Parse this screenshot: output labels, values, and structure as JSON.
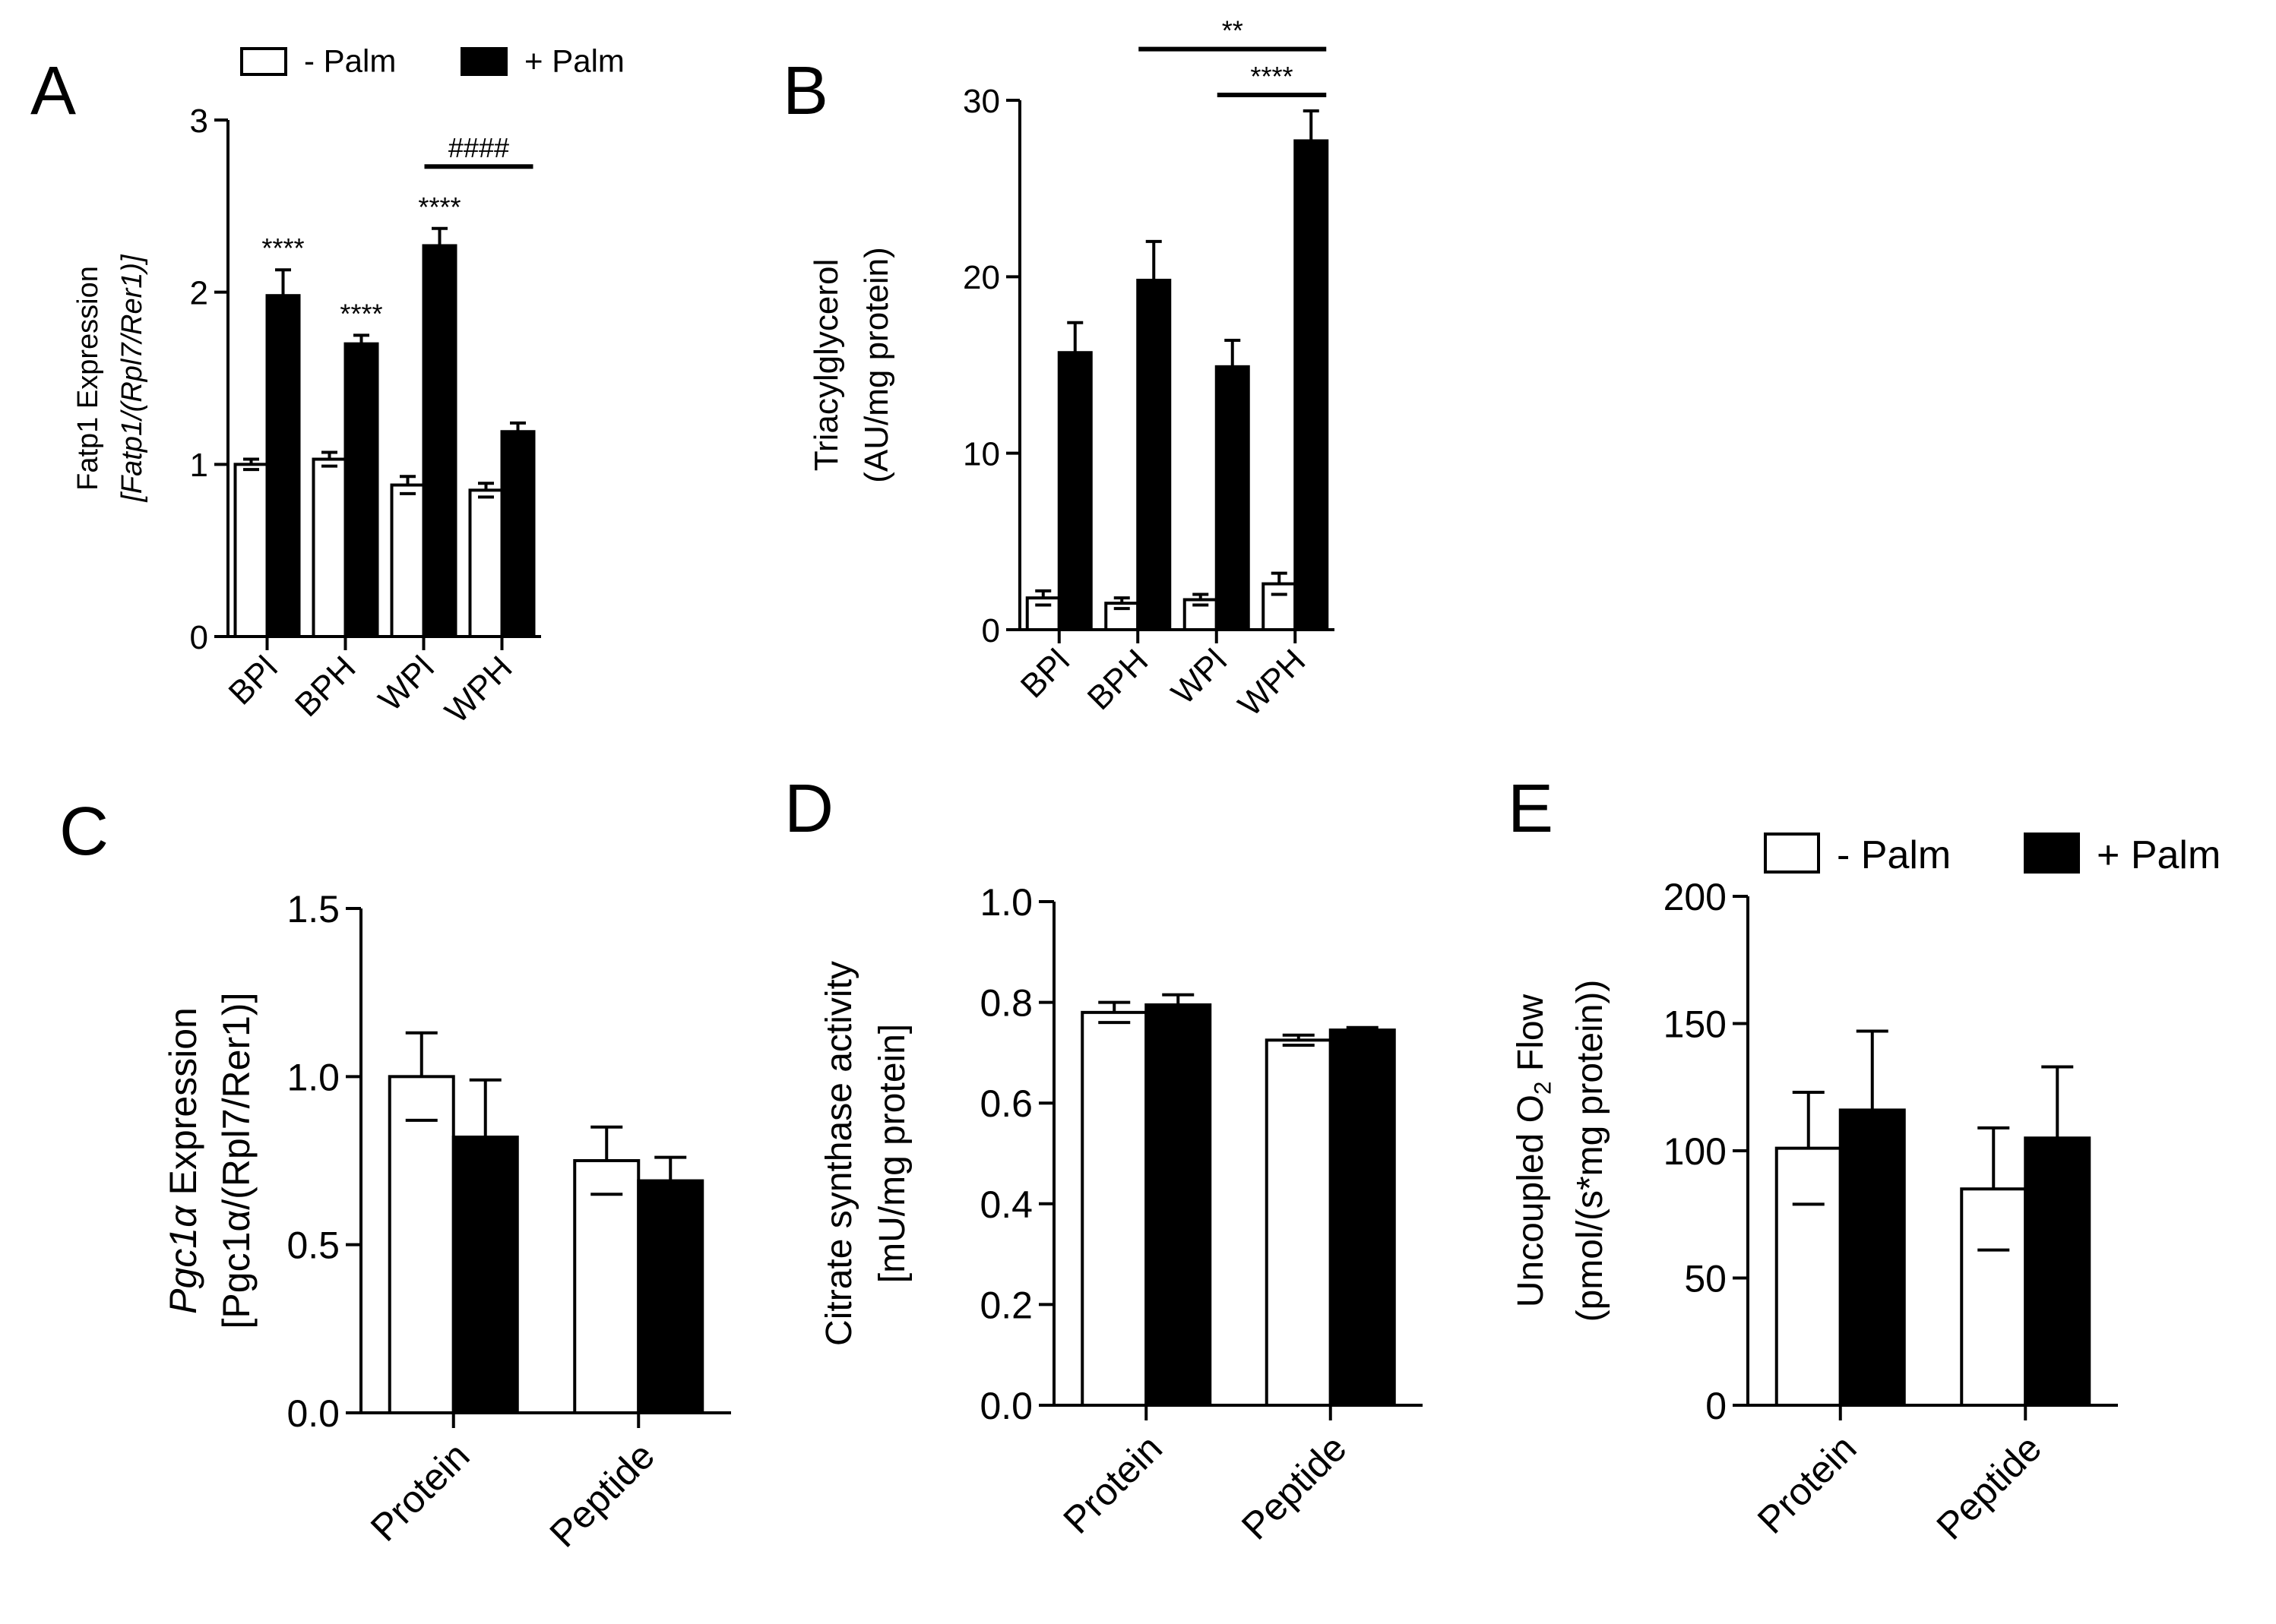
{
  "figure": {
    "colors": {
      "minus": "#ffffff",
      "plus": "#000000",
      "stroke": "#000000"
    }
  },
  "chart_data": [
    {
      "panel": "A",
      "type": "bar",
      "title": "",
      "ylabel": [
        "Fatp1 Expression",
        "[Fatp1/(Rpl7/Rer1)]"
      ],
      "xlabel": "",
      "categories": [
        "BPl",
        "BPH",
        "WPl",
        "WPH"
      ],
      "ylim": [
        0,
        3
      ],
      "yticks": [
        "0",
        "1",
        "2",
        "3"
      ],
      "legend": [
        "- Palm",
        "+ Palm"
      ],
      "series": [
        {
          "name": "- Palm",
          "values": [
            1.0,
            1.03,
            0.88,
            0.85
          ],
          "errors": [
            0.03,
            0.04,
            0.05,
            0.04
          ]
        },
        {
          "name": "+ Palm",
          "values": [
            1.98,
            1.7,
            2.27,
            1.19
          ],
          "errors": [
            0.15,
            0.05,
            0.1,
            0.05
          ]
        }
      ],
      "annotations": [
        {
          "text": "****",
          "category": 0,
          "series": 1
        },
        {
          "text": "****",
          "category": 1,
          "series": 1
        },
        {
          "text": "****",
          "category": 2,
          "series": 1
        },
        {
          "text": "####",
          "from": [
            2,
            1
          ],
          "to": [
            3,
            1
          ],
          "level": 2.73
        }
      ]
    },
    {
      "panel": "B",
      "type": "bar",
      "title": "",
      "ylabel": [
        "Triacylglycerol",
        "(AU/mg protein)"
      ],
      "xlabel": "",
      "categories": [
        "BPl",
        "BPH",
        "WPl",
        "WPH"
      ],
      "ylim": [
        0,
        30
      ],
      "yticks": [
        "0",
        "10",
        "20",
        "30"
      ],
      "legend": [],
      "series": [
        {
          "name": "- Palm",
          "values": [
            1.8,
            1.5,
            1.7,
            2.6
          ],
          "errors": [
            0.4,
            0.3,
            0.3,
            0.6
          ]
        },
        {
          "name": "+ Palm",
          "values": [
            15.7,
            19.8,
            14.9,
            27.7
          ],
          "errors": [
            1.7,
            2.2,
            1.5,
            1.7
          ]
        }
      ],
      "annotations": [
        {
          "text": "**",
          "from": [
            1,
            1
          ],
          "to": [
            3,
            1
          ],
          "level": 32.9
        },
        {
          "text": "****",
          "from": [
            2,
            1
          ],
          "to": [
            3,
            1
          ],
          "level": 30.3
        }
      ]
    },
    {
      "panel": "C",
      "type": "bar",
      "title": "",
      "ylabel": [
        "Pgc1α Expression",
        "[Pgc1α/(Rpl7/Rer1)]"
      ],
      "xlabel": "",
      "categories": [
        "Protein",
        "Peptide"
      ],
      "ylim": [
        0,
        1.5
      ],
      "yticks": [
        "0.0",
        "0.5",
        "1.0",
        "1.5"
      ],
      "legend": [],
      "series": [
        {
          "name": "- Palm",
          "values": [
            1.0,
            0.75
          ],
          "errors": [
            0.13,
            0.1
          ]
        },
        {
          "name": "+ Palm",
          "values": [
            0.82,
            0.69
          ],
          "errors": [
            0.17,
            0.07
          ]
        }
      ],
      "annotations": []
    },
    {
      "panel": "D",
      "type": "bar",
      "title": "",
      "ylabel": [
        "Citrate synthase activity",
        "[mU/mg protein]"
      ],
      "xlabel": "",
      "categories": [
        "Protein",
        "Peptide"
      ],
      "ylim": [
        0,
        1.0
      ],
      "yticks": [
        "0.0",
        "0.2",
        "0.4",
        "0.6",
        "0.8",
        "1.0"
      ],
      "legend": [],
      "series": [
        {
          "name": "- Palm",
          "values": [
            0.78,
            0.725
          ],
          "errors": [
            0.02,
            0.01
          ]
        },
        {
          "name": "+ Palm",
          "values": [
            0.795,
            0.745
          ],
          "errors": [
            0.02,
            0.005
          ]
        }
      ],
      "annotations": []
    },
    {
      "panel": "E",
      "type": "bar",
      "title": "",
      "ylabel": [
        "Uncoupled O₂ Flow",
        "(pmol/(s*mg protein))"
      ],
      "xlabel": "",
      "categories": [
        "Protein",
        "Peptide"
      ],
      "ylim": [
        0,
        200
      ],
      "yticks": [
        "0",
        "50",
        "100",
        "150",
        "200"
      ],
      "legend": [
        "- Palm",
        "+ Palm"
      ],
      "series": [
        {
          "name": "- Palm",
          "values": [
            101,
            85
          ],
          "errors": [
            22,
            24
          ]
        },
        {
          "name": "+ Palm",
          "values": [
            116,
            105
          ],
          "errors": [
            31,
            28
          ]
        }
      ],
      "annotations": []
    }
  ]
}
